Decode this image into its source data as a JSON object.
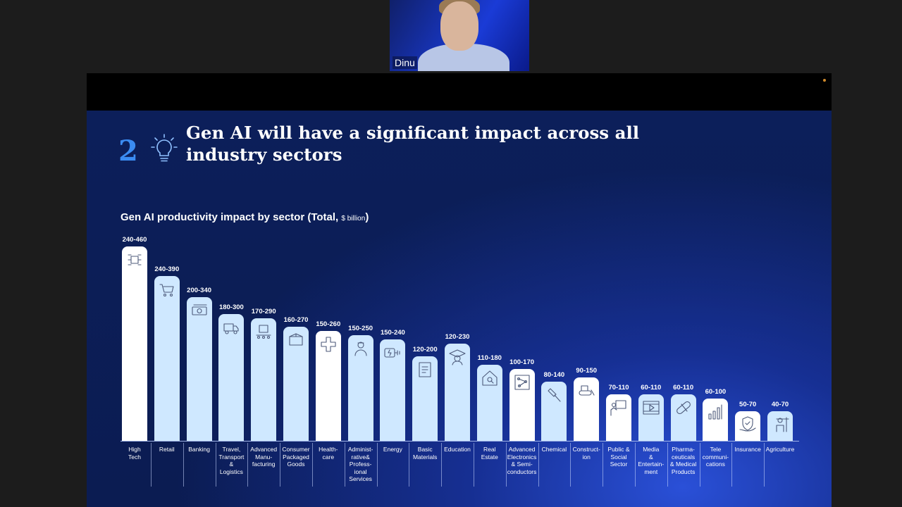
{
  "participant": {
    "name": "Dinu"
  },
  "slide": {
    "number": "2",
    "title": "Gen AI will have a significant impact across all industry sectors",
    "chart_title": "Gen AI productivity impact by sector (Total, ",
    "chart_title_unit": "$ billion",
    "chart_title_close": ")"
  },
  "chart_data": {
    "type": "bar",
    "ylim": [
      0,
      500
    ],
    "categories": [
      "High\nTech",
      "Retail",
      "Banking",
      "Travel,\nTransport\n&\nLogistics",
      "Advanced\nManu-\nfacturing",
      "Consumer\nPackaged\nGoods",
      "Health-\ncare",
      "Administ-\nrative&\nProfess-\nional\nServices",
      "Energy",
      "Basic\nMaterials",
      "Education",
      "Real\nEstate",
      "Advanced\nElectronics\n& Semi-\nconductors",
      "Chemical",
      "Construct-\nion",
      "Public &\nSocial\nSector",
      "Media\n&\nEntertain-\nment",
      "Pharma-\nceuticals\n& Medical\nProducts",
      "Tele\ncommuni-\ncations",
      "Insurance",
      "Agriculture"
    ],
    "labels": [
      "240-460",
      "240-390",
      "200-340",
      "180-300",
      "170-290",
      "160-270",
      "150-260",
      "150-250",
      "150-240",
      "120-200",
      "120-230",
      "110-180",
      "100-170",
      "80-140",
      "90-150",
      "70-110",
      "60-110",
      "60-110",
      "60-100",
      "50-70",
      "40-70"
    ],
    "high": [
      460,
      390,
      340,
      300,
      290,
      270,
      260,
      250,
      240,
      200,
      230,
      180,
      170,
      140,
      150,
      110,
      110,
      110,
      100,
      70,
      70
    ],
    "icons": [
      "network-chip-icon",
      "shopping-cart-icon",
      "money-icon",
      "truck-icon",
      "conveyor-machine-icon",
      "box-icon",
      "medical-cross-icon",
      "worker-icon",
      "battery-plug-icon",
      "document-icon",
      "graduate-icon",
      "house-search-icon",
      "circuit-board-icon",
      "hammer-icon",
      "bulldozer-icon",
      "presenter-icon",
      "video-player-icon",
      "pill-icon",
      "signal-bars-icon",
      "shield-hand-icon",
      "farmer-icon"
    ],
    "style": [
      "white",
      "light",
      "light",
      "light",
      "light",
      "light",
      "white",
      "light",
      "light",
      "light",
      "light",
      "light",
      "white",
      "light",
      "white",
      "white",
      "light",
      "light",
      "white",
      "white",
      "light"
    ],
    "bar_colors": {
      "light": "#cfe8ff",
      "white": "#ffffff"
    }
  }
}
